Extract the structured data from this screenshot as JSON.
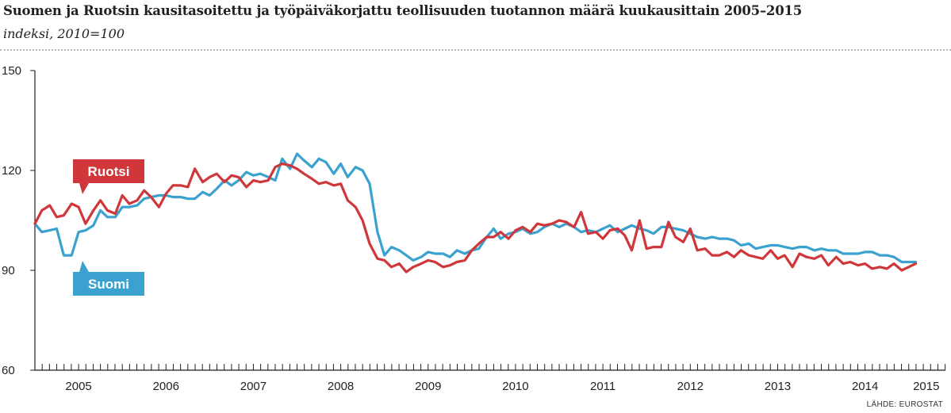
{
  "title": "Suomen ja Ruotsin kausitasoitettu ja työpäiväkorjattu teollisuuden tuotannon määrä kuukausittain 2005–2015",
  "subtitle": "indeksi, 2010=100",
  "source": "LÄHDE: EUROSTAT",
  "colors": {
    "ruotsi": "#d0373b",
    "suomi": "#3ba2cf"
  },
  "chart_data": {
    "type": "line",
    "ylim": [
      60,
      150
    ],
    "yticks": [
      60,
      90,
      120,
      150
    ],
    "xlim": [
      2005.0,
      2015.42
    ],
    "year_labels": [
      "2005",
      "2006",
      "2007",
      "2008",
      "2009",
      "2010",
      "2011",
      "2012",
      "2013",
      "2014",
      "2015"
    ],
    "grid": false,
    "legend": "inline labels",
    "series": [
      {
        "name": "Ruotsi",
        "color": "#d0373b",
        "points": [
          [
            2005.0,
            104
          ],
          [
            2005.08,
            108
          ],
          [
            2005.17,
            109.5
          ],
          [
            2005.25,
            106
          ],
          [
            2005.33,
            106.5
          ],
          [
            2005.42,
            110
          ],
          [
            2005.5,
            109
          ],
          [
            2005.58,
            104
          ],
          [
            2005.67,
            108
          ],
          [
            2005.75,
            111
          ],
          [
            2005.83,
            108
          ],
          [
            2005.92,
            107
          ],
          [
            2006.0,
            112.5
          ],
          [
            2006.08,
            110
          ],
          [
            2006.17,
            111
          ],
          [
            2006.25,
            114
          ],
          [
            2006.33,
            112
          ],
          [
            2006.42,
            109
          ],
          [
            2006.5,
            113
          ],
          [
            2006.58,
            115.5
          ],
          [
            2006.67,
            115.5
          ],
          [
            2006.75,
            115
          ],
          [
            2006.83,
            120.5
          ],
          [
            2006.92,
            116.5
          ],
          [
            2007.0,
            118
          ],
          [
            2007.08,
            119
          ],
          [
            2007.17,
            116.5
          ],
          [
            2007.25,
            118.5
          ],
          [
            2007.33,
            118
          ],
          [
            2007.42,
            115
          ],
          [
            2007.5,
            117
          ],
          [
            2007.58,
            116.5
          ],
          [
            2007.67,
            117
          ],
          [
            2007.75,
            121
          ],
          [
            2007.83,
            122
          ],
          [
            2007.92,
            121.5
          ],
          [
            2008.0,
            120.5
          ],
          [
            2008.08,
            119
          ],
          [
            2008.17,
            117.5
          ],
          [
            2008.25,
            116
          ],
          [
            2008.33,
            116.5
          ],
          [
            2008.42,
            115.5
          ],
          [
            2008.5,
            116
          ],
          [
            2008.58,
            111
          ],
          [
            2008.67,
            109
          ],
          [
            2008.75,
            105
          ],
          [
            2008.83,
            98
          ],
          [
            2008.92,
            93.5
          ],
          [
            2009.0,
            93
          ],
          [
            2009.08,
            91
          ],
          [
            2009.17,
            92
          ],
          [
            2009.25,
            89.5
          ],
          [
            2009.33,
            91
          ],
          [
            2009.42,
            92
          ],
          [
            2009.5,
            93
          ],
          [
            2009.58,
            92.5
          ],
          [
            2009.67,
            91
          ],
          [
            2009.75,
            91.5
          ],
          [
            2009.83,
            92.5
          ],
          [
            2009.92,
            93
          ],
          [
            2010.0,
            96
          ],
          [
            2010.08,
            98
          ],
          [
            2010.17,
            100
          ],
          [
            2010.25,
            100
          ],
          [
            2010.33,
            101.5
          ],
          [
            2010.42,
            99.5
          ],
          [
            2010.5,
            102
          ],
          [
            2010.58,
            103
          ],
          [
            2010.67,
            101.5
          ],
          [
            2010.75,
            104
          ],
          [
            2010.83,
            103.5
          ],
          [
            2010.92,
            104
          ],
          [
            2011.0,
            105
          ],
          [
            2011.08,
            104.5
          ],
          [
            2011.17,
            103
          ],
          [
            2011.25,
            107.5
          ],
          [
            2011.33,
            101
          ],
          [
            2011.42,
            101.5
          ],
          [
            2011.5,
            99.5
          ],
          [
            2011.58,
            102
          ],
          [
            2011.67,
            102.5
          ],
          [
            2011.75,
            100.5
          ],
          [
            2011.83,
            96
          ],
          [
            2011.92,
            105
          ],
          [
            2012.0,
            96.5
          ],
          [
            2012.08,
            97
          ],
          [
            2012.17,
            97
          ],
          [
            2012.25,
            104.5
          ],
          [
            2012.33,
            100
          ],
          [
            2012.42,
            98.5
          ],
          [
            2012.5,
            102.5
          ],
          [
            2012.58,
            96
          ],
          [
            2012.67,
            96.5
          ],
          [
            2012.75,
            94.5
          ],
          [
            2012.83,
            94.5
          ],
          [
            2012.92,
            95.5
          ],
          [
            2013.0,
            94
          ],
          [
            2013.08,
            96
          ],
          [
            2013.17,
            94.5
          ],
          [
            2013.25,
            94
          ],
          [
            2013.33,
            93.5
          ],
          [
            2013.42,
            96
          ],
          [
            2013.5,
            93.5
          ],
          [
            2013.58,
            94.5
          ],
          [
            2013.67,
            91
          ],
          [
            2013.75,
            95
          ],
          [
            2013.83,
            94
          ],
          [
            2013.92,
            93.5
          ],
          [
            2014.0,
            94.5
          ],
          [
            2014.08,
            91.5
          ],
          [
            2014.17,
            94
          ],
          [
            2014.25,
            92
          ],
          [
            2014.33,
            92.5
          ],
          [
            2014.42,
            91.5
          ],
          [
            2014.5,
            92
          ],
          [
            2014.58,
            90.5
          ],
          [
            2014.67,
            91
          ],
          [
            2014.75,
            90.5
          ],
          [
            2014.83,
            92
          ],
          [
            2014.92,
            90
          ],
          [
            2015.0,
            91
          ],
          [
            2015.08,
            92
          ]
        ]
      },
      {
        "name": "Suomi",
        "color": "#3ba2cf",
        "points": [
          [
            2005.0,
            104
          ],
          [
            2005.08,
            101.5
          ],
          [
            2005.17,
            102
          ],
          [
            2005.25,
            102.5
          ],
          [
            2005.33,
            94.5
          ],
          [
            2005.42,
            94.5
          ],
          [
            2005.5,
            101.5
          ],
          [
            2005.58,
            102
          ],
          [
            2005.67,
            103.5
          ],
          [
            2005.75,
            108
          ],
          [
            2005.83,
            106
          ],
          [
            2005.92,
            106
          ],
          [
            2006.0,
            109
          ],
          [
            2006.08,
            109
          ],
          [
            2006.17,
            109.5
          ],
          [
            2006.25,
            111.5
          ],
          [
            2006.33,
            112
          ],
          [
            2006.42,
            112.5
          ],
          [
            2006.5,
            112.5
          ],
          [
            2006.58,
            112
          ],
          [
            2006.67,
            112
          ],
          [
            2006.75,
            111.5
          ],
          [
            2006.83,
            111.5
          ],
          [
            2006.92,
            113.5
          ],
          [
            2007.0,
            112.5
          ],
          [
            2007.08,
            114.5
          ],
          [
            2007.17,
            117
          ],
          [
            2007.25,
            115.5
          ],
          [
            2007.33,
            117
          ],
          [
            2007.42,
            119.5
          ],
          [
            2007.5,
            118.5
          ],
          [
            2007.58,
            119
          ],
          [
            2007.67,
            118
          ],
          [
            2007.75,
            117
          ],
          [
            2007.83,
            123.5
          ],
          [
            2007.92,
            120.5
          ],
          [
            2008.0,
            125
          ],
          [
            2008.08,
            123
          ],
          [
            2008.17,
            121
          ],
          [
            2008.25,
            123.5
          ],
          [
            2008.33,
            122.5
          ],
          [
            2008.42,
            119
          ],
          [
            2008.5,
            122
          ],
          [
            2008.58,
            118
          ],
          [
            2008.67,
            121
          ],
          [
            2008.75,
            120
          ],
          [
            2008.83,
            116
          ],
          [
            2008.92,
            101.5
          ],
          [
            2009.0,
            94.5
          ],
          [
            2009.08,
            97
          ],
          [
            2009.17,
            96
          ],
          [
            2009.25,
            94.5
          ],
          [
            2009.33,
            93
          ],
          [
            2009.42,
            94
          ],
          [
            2009.5,
            95.5
          ],
          [
            2009.58,
            95
          ],
          [
            2009.67,
            95
          ],
          [
            2009.75,
            94
          ],
          [
            2009.83,
            96
          ],
          [
            2009.92,
            95
          ],
          [
            2010.0,
            96
          ],
          [
            2010.08,
            96.5
          ],
          [
            2010.17,
            100
          ],
          [
            2010.25,
            102.5
          ],
          [
            2010.33,
            99.5
          ],
          [
            2010.42,
            101
          ],
          [
            2010.5,
            101.5
          ],
          [
            2010.58,
            102.5
          ],
          [
            2010.67,
            101
          ],
          [
            2010.75,
            101.5
          ],
          [
            2010.83,
            103
          ],
          [
            2010.92,
            104
          ],
          [
            2011.0,
            103
          ],
          [
            2011.08,
            104
          ],
          [
            2011.17,
            103
          ],
          [
            2011.25,
            101.5
          ],
          [
            2011.33,
            102
          ],
          [
            2011.42,
            101.5
          ],
          [
            2011.5,
            102.5
          ],
          [
            2011.58,
            103.5
          ],
          [
            2011.67,
            101.5
          ],
          [
            2011.75,
            102.5
          ],
          [
            2011.83,
            103.5
          ],
          [
            2011.92,
            102.5
          ],
          [
            2012.0,
            102
          ],
          [
            2012.08,
            101
          ],
          [
            2012.17,
            103
          ],
          [
            2012.25,
            103
          ],
          [
            2012.33,
            102.5
          ],
          [
            2012.42,
            102
          ],
          [
            2012.5,
            101
          ],
          [
            2012.58,
            100
          ],
          [
            2012.67,
            99.5
          ],
          [
            2012.75,
            100
          ],
          [
            2012.83,
            99.5
          ],
          [
            2012.92,
            99.5
          ],
          [
            2013.0,
            99
          ],
          [
            2013.08,
            97.5
          ],
          [
            2013.17,
            98
          ],
          [
            2013.25,
            96.5
          ],
          [
            2013.33,
            97
          ],
          [
            2013.42,
            97.5
          ],
          [
            2013.5,
            97.5
          ],
          [
            2013.58,
            97
          ],
          [
            2013.67,
            96.5
          ],
          [
            2013.75,
            97
          ],
          [
            2013.83,
            97
          ],
          [
            2013.92,
            96
          ],
          [
            2014.0,
            96.5
          ],
          [
            2014.08,
            96
          ],
          [
            2014.17,
            96
          ],
          [
            2014.25,
            95
          ],
          [
            2014.33,
            95
          ],
          [
            2014.42,
            95
          ],
          [
            2014.5,
            95.5
          ],
          [
            2014.58,
            95.5
          ],
          [
            2014.67,
            94.5
          ],
          [
            2014.75,
            94.5
          ],
          [
            2014.83,
            94
          ],
          [
            2014.92,
            92.5
          ],
          [
            2015.0,
            92.5
          ],
          [
            2015.08,
            92.5
          ]
        ]
      }
    ]
  }
}
